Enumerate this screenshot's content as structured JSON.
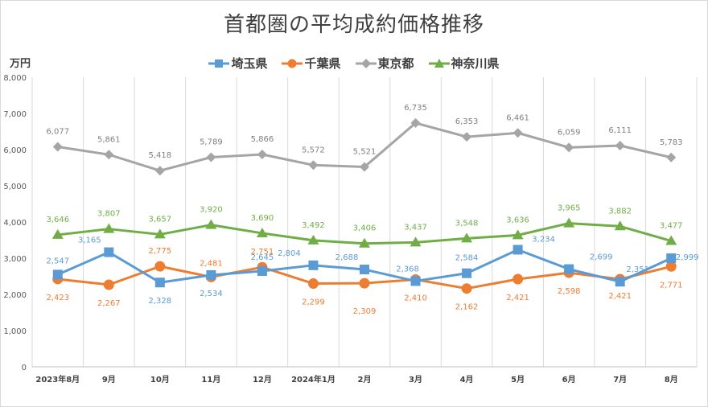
{
  "chart_data": {
    "type": "line",
    "title": "首都圏の平均成約価格推移",
    "ylabel": "万円",
    "xlabel": "",
    "ylim": [
      0,
      8000
    ],
    "yticks": [
      0,
      1000,
      2000,
      3000,
      4000,
      5000,
      6000,
      7000,
      8000
    ],
    "ytick_labels": [
      "0",
      "1,000",
      "2,000",
      "3,000",
      "4,000",
      "5,000",
      "6,000",
      "7,000",
      "8,000"
    ],
    "grid": "vertical",
    "legend_position": "top",
    "categories": [
      "2023年8月",
      "9月",
      "10月",
      "11月",
      "12月",
      "2024年1月",
      "2月",
      "3月",
      "4月",
      "5月",
      "6月",
      "7月",
      "8月"
    ],
    "series": [
      {
        "name": "埼玉県",
        "color": "#5b9bd5",
        "marker": "square",
        "values": [
          2547,
          3165,
          2328,
          2534,
          2645,
          2804,
          2688,
          2368,
          2584,
          3234,
          2699,
          2351,
          2999
        ],
        "labels": [
          "2,547",
          "3,165",
          "2,328",
          "2,534",
          "2,645",
          "2,804",
          "2,688",
          "2,368",
          "2,584",
          "3,234",
          "2,699",
          "2,351",
          "2,999"
        ]
      },
      {
        "name": "千葉県",
        "color": "#ed7d31",
        "marker": "circle",
        "values": [
          2423,
          2267,
          2775,
          2481,
          2751,
          2299,
          2309,
          2410,
          2162,
          2421,
          2598,
          2421,
          2771
        ],
        "labels": [
          "2,423",
          "2,267",
          "2,775",
          "2,481",
          "2,751",
          "2,299",
          "2,309",
          "2,410",
          "2,162",
          "2,421",
          "2,598",
          "2,421",
          "2,771"
        ]
      },
      {
        "name": "東京都",
        "color": "#a5a5a5",
        "marker": "diamond",
        "values": [
          6077,
          5861,
          5418,
          5789,
          5866,
          5572,
          5521,
          6735,
          6353,
          6461,
          6059,
          6111,
          5783
        ],
        "labels": [
          "6,077",
          "5,861",
          "5,418",
          "5,789",
          "5,866",
          "5,572",
          "5,521",
          "6,735",
          "6,353",
          "6,461",
          "6,059",
          "6,111",
          "5,783"
        ]
      },
      {
        "name": "神奈川県",
        "color": "#70ad47",
        "marker": "triangle",
        "values": [
          3646,
          3807,
          3657,
          3920,
          3690,
          3492,
          3406,
          3437,
          3548,
          3636,
          3965,
          3882,
          3477
        ],
        "labels": [
          "3,646",
          "3,807",
          "3,657",
          "3,920",
          "3,690",
          "3,492",
          "3,406",
          "3,437",
          "3,548",
          "3,636",
          "3,965",
          "3,882",
          "3,477"
        ]
      }
    ]
  }
}
